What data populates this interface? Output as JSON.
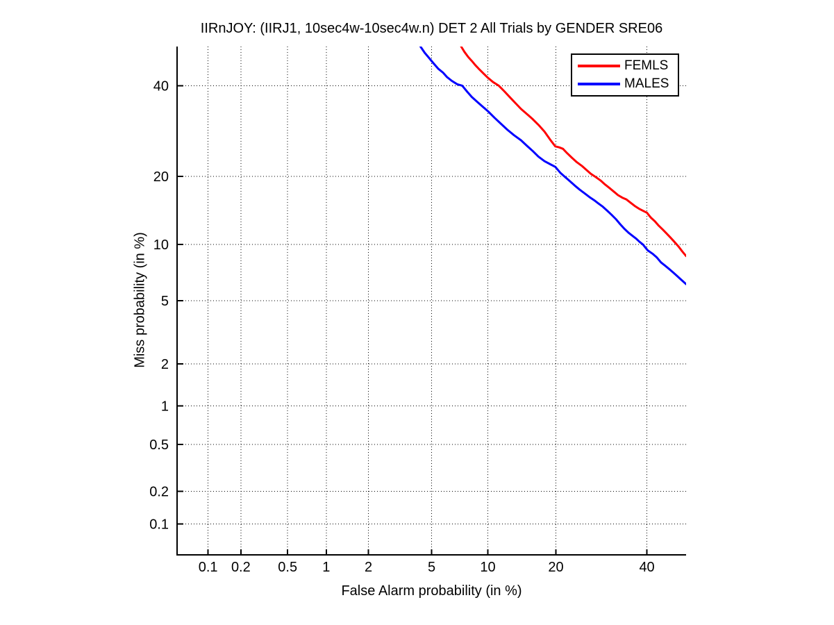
{
  "figure": {
    "background": "#ffffff"
  },
  "chart_data": {
    "type": "line",
    "title": "IIRnJOY: (IIRJ1, 10sec4w-10sec4w.n) DET 2 All Trials by GENDER SRE06",
    "xlabel": "False Alarm probability (in %)",
    "ylabel": "Miss probability (in %)",
    "axis_scale": "normal-deviate-probit (DET plot)",
    "xlim_pct": [
      0.05,
      50
    ],
    "ylim_pct": [
      0.05,
      50
    ],
    "xticks_pct": [
      0.1,
      0.2,
      0.5,
      1,
      2,
      5,
      10,
      20,
      40
    ],
    "xtick_labels": [
      "0.1",
      "0.2",
      "0.5",
      "1",
      "2",
      "5",
      "10",
      "20",
      "40"
    ],
    "yticks_pct": [
      0.1,
      0.2,
      0.5,
      1,
      2,
      5,
      10,
      20,
      40
    ],
    "ytick_labels": [
      "0.1",
      "0.2",
      "0.5",
      "1",
      "2",
      "5",
      "10",
      "20",
      "40"
    ],
    "grid": "dotted",
    "grid_color": "#000000",
    "axis_color": "#000000",
    "background_color": "#ffffff",
    "legend": {
      "position": "top-right",
      "border_color": "#000000"
    },
    "series": [
      {
        "name": "FEMLS",
        "color": "#ff0000",
        "points_fa_miss_pct": [
          [
            7.3,
            50
          ],
          [
            7.6,
            48.6
          ],
          [
            7.95,
            47.3
          ],
          [
            8.3,
            46.3
          ],
          [
            8.65,
            45.2
          ],
          [
            9.0,
            44.3
          ],
          [
            9.5,
            43.1
          ],
          [
            10.0,
            42.0
          ],
          [
            10.6,
            40.9
          ],
          [
            11.3,
            40.0
          ],
          [
            12.0,
            38.6
          ],
          [
            12.75,
            37.1
          ],
          [
            13.5,
            35.7
          ],
          [
            14.3,
            34.3
          ],
          [
            15.1,
            33.2
          ],
          [
            16.0,
            32.0
          ],
          [
            17.0,
            30.6
          ],
          [
            18.0,
            29.1
          ],
          [
            19.0,
            27.3
          ],
          [
            19.9,
            25.9
          ],
          [
            20.6,
            25.7
          ],
          [
            21.3,
            25.4
          ],
          [
            22.1,
            24.5
          ],
          [
            23.0,
            23.6
          ],
          [
            24.0,
            22.7
          ],
          [
            25.0,
            22.0
          ],
          [
            26.0,
            21.2
          ],
          [
            26.9,
            20.5
          ],
          [
            27.8,
            20.0
          ],
          [
            29.0,
            19.3
          ],
          [
            30.0,
            18.6
          ],
          [
            31.0,
            18.0
          ],
          [
            32.0,
            17.4
          ],
          [
            33.0,
            16.8
          ],
          [
            34.0,
            16.4
          ],
          [
            35.0,
            16.1
          ],
          [
            36.0,
            15.6
          ],
          [
            37.0,
            15.1
          ],
          [
            38.0,
            14.7
          ],
          [
            39.0,
            14.4
          ],
          [
            40.0,
            14.1
          ],
          [
            41.0,
            13.4
          ],
          [
            42.0,
            12.9
          ],
          [
            43.0,
            12.3
          ],
          [
            44.0,
            11.8
          ],
          [
            45.0,
            11.3
          ],
          [
            46.0,
            10.8
          ],
          [
            47.0,
            10.3
          ],
          [
            48.0,
            9.8
          ],
          [
            49.0,
            9.25
          ],
          [
            50.0,
            8.75
          ]
        ]
      },
      {
        "name": "MALES",
        "color": "#0000ff",
        "points_fa_miss_pct": [
          [
            4.3,
            50
          ],
          [
            4.55,
            48.4
          ],
          [
            4.8,
            47.2
          ],
          [
            5.1,
            45.8
          ],
          [
            5.45,
            44.3
          ],
          [
            5.8,
            43.3
          ],
          [
            6.1,
            42.2
          ],
          [
            6.5,
            41.2
          ],
          [
            6.95,
            40.35
          ],
          [
            7.4,
            40.0
          ],
          [
            7.85,
            38.5
          ],
          [
            8.3,
            37.2
          ],
          [
            8.8,
            36.1
          ],
          [
            9.4,
            34.9
          ],
          [
            10.0,
            33.8
          ],
          [
            10.8,
            32.2
          ],
          [
            11.6,
            30.8
          ],
          [
            12.4,
            29.5
          ],
          [
            13.3,
            28.3
          ],
          [
            14.3,
            27.2
          ],
          [
            15.2,
            26.0
          ],
          [
            16.1,
            24.9
          ],
          [
            17.0,
            23.8
          ],
          [
            18.0,
            22.9
          ],
          [
            19.0,
            22.3
          ],
          [
            19.9,
            21.8
          ],
          [
            20.8,
            20.7
          ],
          [
            21.6,
            20.0
          ],
          [
            22.6,
            19.2
          ],
          [
            23.6,
            18.4
          ],
          [
            24.6,
            17.7
          ],
          [
            25.6,
            17.1
          ],
          [
            26.6,
            16.5
          ],
          [
            27.6,
            16.0
          ],
          [
            28.5,
            15.5
          ],
          [
            29.5,
            15.0
          ],
          [
            30.5,
            14.4
          ],
          [
            31.5,
            13.8
          ],
          [
            32.5,
            13.2
          ],
          [
            33.5,
            12.5
          ],
          [
            34.5,
            11.9
          ],
          [
            35.5,
            11.4
          ],
          [
            36.5,
            11.0
          ],
          [
            37.3,
            10.7
          ],
          [
            38.2,
            10.3
          ],
          [
            39.0,
            10.0
          ],
          [
            40.2,
            9.35
          ],
          [
            41.4,
            9.0
          ],
          [
            42.5,
            8.6
          ],
          [
            43.6,
            8.1
          ],
          [
            44.6,
            7.8
          ],
          [
            45.6,
            7.5
          ],
          [
            46.6,
            7.2
          ],
          [
            47.6,
            6.9
          ],
          [
            48.6,
            6.6
          ],
          [
            49.3,
            6.4
          ],
          [
            50.0,
            6.2
          ]
        ]
      }
    ]
  }
}
